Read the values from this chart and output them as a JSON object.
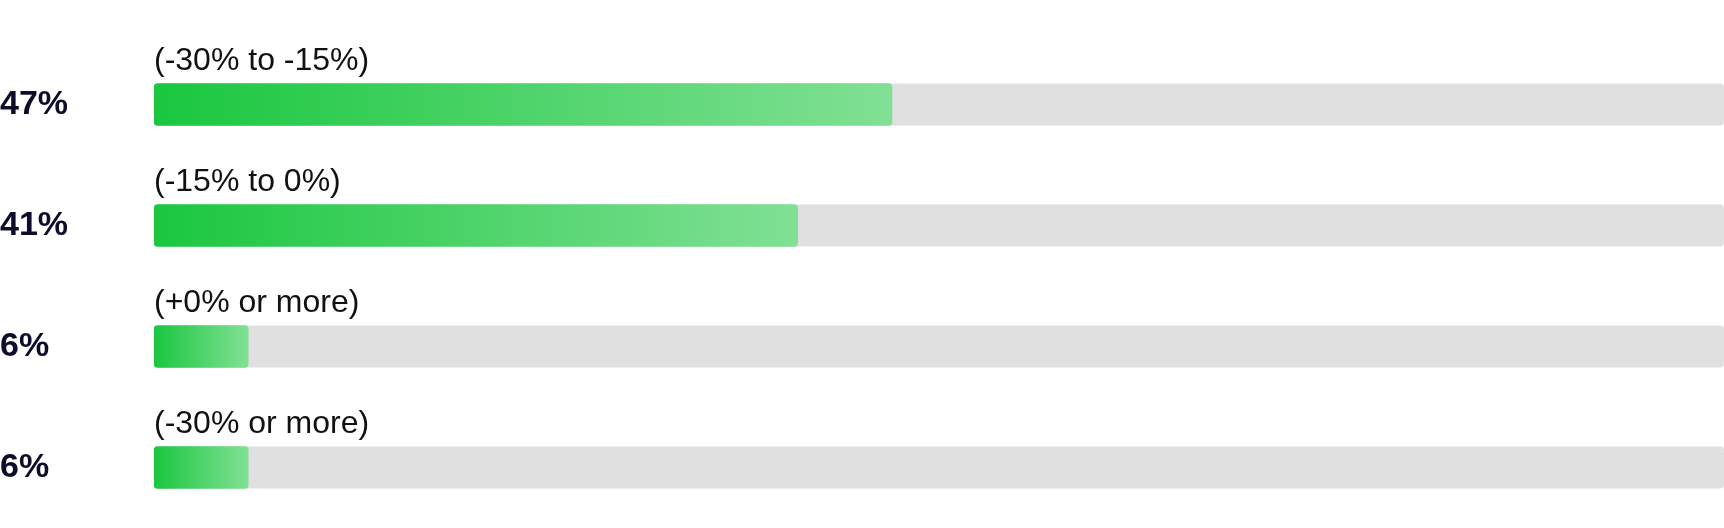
{
  "chart_data": {
    "type": "bar",
    "orientation": "horizontal",
    "categories": [
      "(-30% to -15%)",
      "(-15% to 0%)",
      "(+0% or more)",
      "(-30% or more)"
    ],
    "values": [
      47,
      41,
      6,
      6
    ],
    "value_labels": [
      "47%",
      "41%",
      "6%",
      "6%"
    ],
    "color": "#1ac73f",
    "xlim": [
      0,
      100
    ],
    "legend": false
  }
}
